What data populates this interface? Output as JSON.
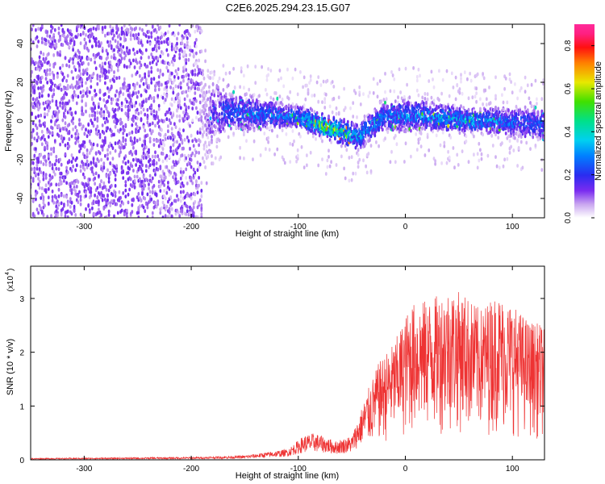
{
  "chart_data": [
    {
      "type": "heatmap",
      "title": "C2E6.2025.294.23.15.G07",
      "xlabel": "Height of straight line (km)",
      "ylabel": "Frequency (Hz)",
      "xlim": [
        -350,
        130
      ],
      "ylim": [
        -50,
        50
      ],
      "xticks": [
        -300,
        -200,
        -100,
        0,
        100
      ],
      "yticks": [
        -40,
        -20,
        0,
        20,
        40
      ],
      "colorbar": {
        "label": "Normalized spectral amplitude",
        "range": [
          0.0,
          0.9
        ],
        "ticks": [
          "0.0",
          "0.2",
          "0.4",
          "0.6",
          "0.8"
        ],
        "colormap": "rainbow (white-purple-blue-cyan-green-yellow-red-magenta)"
      },
      "description_points": [
        {
          "x": -350,
          "center": 0,
          "spread": 50,
          "amp": 0.05
        },
        {
          "x": -190,
          "center": 0,
          "spread": 50,
          "amp": 0.05
        },
        {
          "x": -170,
          "center": 5,
          "spread": 15,
          "amp": 0.25
        },
        {
          "x": -100,
          "center": 2,
          "spread": 8,
          "amp": 0.3
        },
        {
          "x": -75,
          "center": -3,
          "spread": 8,
          "amp": 0.55
        },
        {
          "x": -45,
          "center": -8,
          "spread": 10,
          "amp": 0.35
        },
        {
          "x": -20,
          "center": 2,
          "spread": 10,
          "amp": 0.3
        },
        {
          "x": 10,
          "center": 3,
          "spread": 12,
          "amp": 0.3
        },
        {
          "x": 60,
          "center": 0,
          "spread": 8,
          "amp": 0.35
        },
        {
          "x": 90,
          "center": 0,
          "spread": 10,
          "amp": 0.28
        },
        {
          "x": 130,
          "center": -2,
          "spread": 12,
          "amp": 0.25
        }
      ]
    },
    {
      "type": "line",
      "title": "",
      "xlabel": "Height of straight line (km)",
      "ylabel": "SNR (10 * v/v)",
      "yscale_label": "(x10",
      "yscale_exp": "4",
      "xlim": [
        -350,
        130
      ],
      "ylim": [
        0,
        3.6
      ],
      "xticks": [
        -300,
        -200,
        -100,
        0,
        100
      ],
      "yticks": [
        0,
        1,
        2,
        3
      ],
      "color": "#ee3333",
      "envelope": [
        {
          "x": -350,
          "y": 0.03
        },
        {
          "x": -200,
          "y": 0.05
        },
        {
          "x": -150,
          "y": 0.08
        },
        {
          "x": -110,
          "y": 0.2
        },
        {
          "x": -95,
          "y": 0.45
        },
        {
          "x": -85,
          "y": 0.5
        },
        {
          "x": -65,
          "y": 0.35
        },
        {
          "x": -50,
          "y": 0.45
        },
        {
          "x": -35,
          "y": 1.3
        },
        {
          "x": -25,
          "y": 1.8
        },
        {
          "x": -10,
          "y": 2.2
        },
        {
          "x": 5,
          "y": 2.9
        },
        {
          "x": 25,
          "y": 3.0
        },
        {
          "x": 40,
          "y": 3.2
        },
        {
          "x": 55,
          "y": 3.1
        },
        {
          "x": 70,
          "y": 2.8
        },
        {
          "x": 85,
          "y": 3.1
        },
        {
          "x": 100,
          "y": 2.9
        },
        {
          "x": 115,
          "y": 2.6
        },
        {
          "x": 130,
          "y": 2.5
        }
      ]
    }
  ]
}
